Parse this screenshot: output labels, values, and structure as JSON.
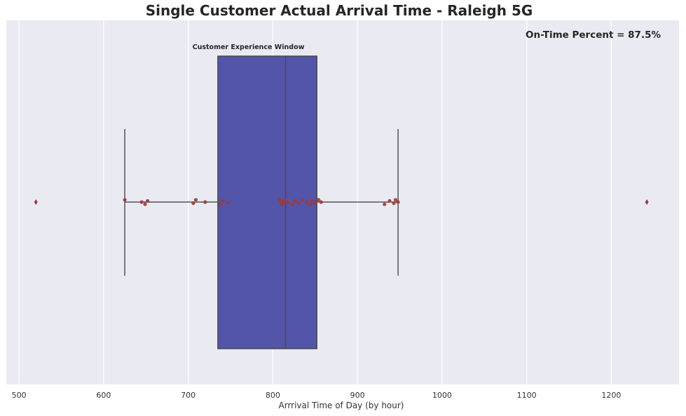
{
  "chart_data": {
    "type": "box",
    "title": "Single Customer Actual Arrival Time - Raleigh 5G",
    "xlabel": "Arrrival Time of Day (by hour)",
    "ylabel": "",
    "xlim": [
      485,
      1280
    ],
    "xticks": [
      500,
      600,
      700,
      800,
      900,
      1000,
      1100,
      1200
    ],
    "grid": true,
    "orientation": "horizontal",
    "box": {
      "whisker_low": 625,
      "q1": 735,
      "median": 815,
      "q3": 852,
      "whisker_high": 948,
      "outliers": [
        520,
        1242
      ],
      "color": "#5355a8"
    },
    "points": [
      625,
      645,
      649,
      652,
      706,
      709,
      720,
      738,
      741,
      747,
      808,
      810,
      811,
      812,
      813,
      814,
      818,
      823,
      826,
      830,
      835,
      840,
      844,
      846,
      850,
      854,
      857,
      932,
      938,
      943,
      945,
      948
    ],
    "point_color": "#9b3b3b",
    "annotations": {
      "window_label": "Customer Experience Window",
      "on_time": "On-Time Percent = 87.5%"
    },
    "colors": {
      "plot_background": "#eaeaf2",
      "grid": "#ffffff",
      "box_edge": "#4a4a4a",
      "whisker": "#555555"
    }
  }
}
